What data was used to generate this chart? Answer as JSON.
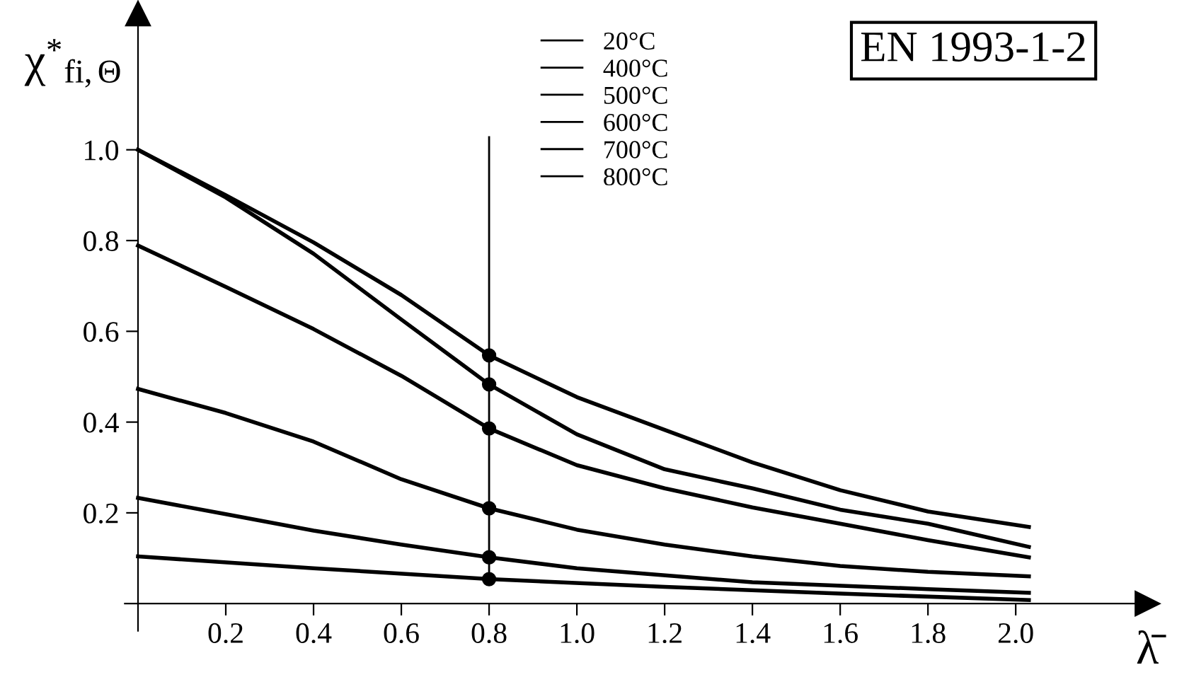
{
  "chart_data": {
    "type": "line",
    "xlabel": "λ̄",
    "ylabel": "χ$^{*}$$_{fi,Θ}$",
    "xlim": [
      -0.03,
      2.3
    ],
    "ylim": [
      -0.06,
      1.3
    ],
    "xticks": [
      0.2,
      0.4,
      0.6,
      0.8,
      {
        "value": 1,
        "label": "1.0"
      },
      1.2,
      1.4,
      1.6,
      1.8,
      {
        "value": 2,
        "label": "2.0"
      }
    ],
    "yticks": [
      0.2,
      0.4,
      0.6,
      0.8,
      {
        "value": 1,
        "label": "1.0"
      }
    ],
    "grid": false,
    "legend": "top",
    "marker": "none",
    "line_style": "solid",
    "annotations": [
      "EN 1993-1-2"
    ],
    "ref_lines": [
      {
        "axis": "x",
        "value": 0.8,
        "color": "#000000"
      }
    ],
    "series": [
      {
        "name": "20°C",
        "color": "#000000",
        "x": [
          0,
          0.2,
          0.4,
          0.6,
          0.8,
          1.0,
          1.2,
          1.4,
          1.6,
          1.8,
          2.03
        ],
        "values": [
          1.0,
          0.9,
          0.796,
          0.68,
          0.547,
          0.455,
          0.383,
          0.311,
          0.25,
          0.203,
          0.169
        ]
      },
      {
        "name": "400°C",
        "color": "#000000",
        "x": [
          0,
          0.2,
          0.4,
          0.6,
          0.8,
          1.0,
          1.2,
          1.4,
          1.6,
          1.8,
          2.03
        ],
        "values": [
          1.0,
          0.895,
          0.771,
          0.626,
          0.483,
          0.373,
          0.296,
          0.254,
          0.207,
          0.176,
          0.125
        ]
      },
      {
        "name": "500°C",
        "color": "#000000",
        "x": [
          0,
          0.2,
          0.4,
          0.6,
          0.8,
          1.0,
          1.2,
          1.4,
          1.6,
          1.8,
          2.03
        ],
        "values": [
          0.789,
          0.698,
          0.605,
          0.502,
          0.386,
          0.305,
          0.254,
          0.212,
          0.176,
          0.14,
          0.102
        ]
      },
      {
        "name": "600°C",
        "color": "#000000",
        "x": [
          0,
          0.2,
          0.4,
          0.6,
          0.8,
          1.0,
          1.2,
          1.4,
          1.6,
          1.8,
          2.03
        ],
        "values": [
          0.473,
          0.42,
          0.357,
          0.274,
          0.21,
          0.163,
          0.13,
          0.104,
          0.083,
          0.07,
          0.06
        ]
      },
      {
        "name": "700°C",
        "color": "#000000",
        "x": [
          0,
          0.2,
          0.4,
          0.6,
          0.8,
          1.0,
          1.4,
          1.8,
          2.03
        ],
        "values": [
          0.233,
          0.197,
          0.161,
          0.13,
          0.102,
          0.078,
          0.047,
          0.032,
          0.024
        ]
      },
      {
        "name": "800°C",
        "color": "#000000",
        "x": [
          0,
          0.4,
          0.8,
          1.2,
          1.6,
          2.03
        ],
        "values": [
          0.104,
          0.078,
          0.054,
          0.037,
          0.022,
          0.008
        ]
      },
      {
        "type": "scatter",
        "marker": "circle",
        "color": "#000000",
        "x": [
          0.8,
          0.8,
          0.8,
          0.8,
          0.8,
          0.8
        ],
        "values": [
          0.547,
          0.483,
          0.386,
          0.21,
          0.102,
          0.054
        ]
      }
    ]
  }
}
